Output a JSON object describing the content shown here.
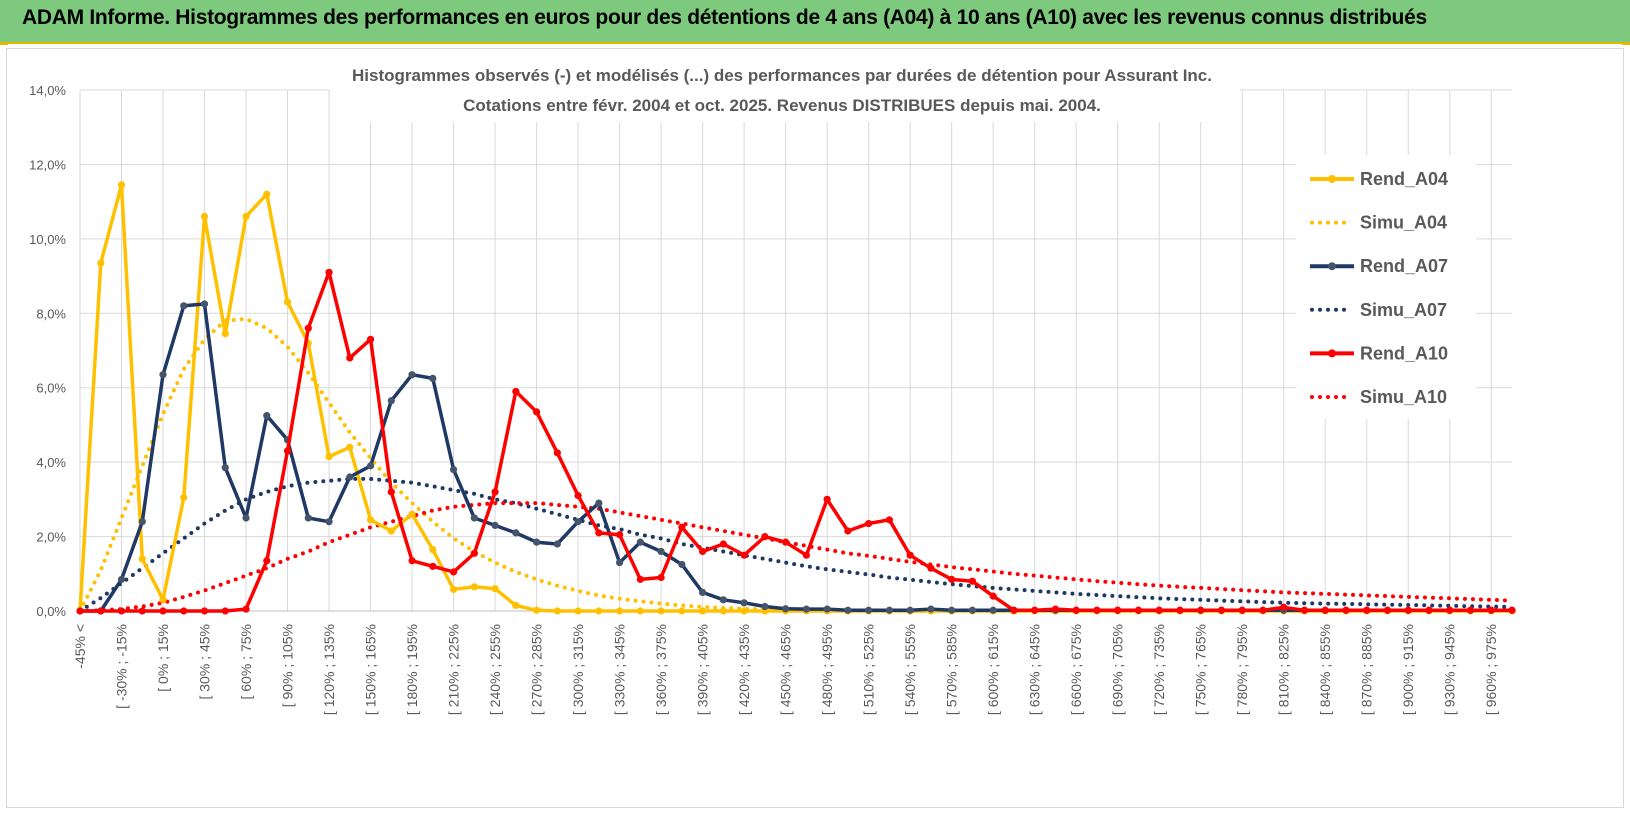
{
  "header": {
    "title": "ADAM Informe. Histogrammes des performances en euros pour des détentions de 4 ans (A04) à 10 ans (A10) avec les revenus connus distribués"
  },
  "colors": {
    "header_bg": "#7dc97d",
    "A04": "#ffc000",
    "A07": "#1f3864",
    "A10": "#ff0000",
    "grid": "#d9d9d9",
    "text": "#595959"
  },
  "chart_data": {
    "type": "line",
    "title": [
      "Histogrammes observés (-) et modélisés (...) des performances par durées de détention pour Assurant Inc.",
      "Cotations entre févr. 2004 et oct. 2025. Revenus DISTRIBUES depuis mai. 2004."
    ],
    "y_ticks": [
      "0,0%",
      "2,0%",
      "4,0%",
      "6,0%",
      "8,0%",
      "10,0%",
      "12,0%",
      "14,0%"
    ],
    "ylim": [
      0,
      14
    ],
    "x_ticks": [
      "-45% <",
      "[ -30% ; -15%",
      "[ 0% ; 15%",
      "[ 30% ; 45%",
      "[ 60% ; 75%",
      "[ 90% ; 105%",
      "[ 120% ; 135%",
      "[ 150% ; 165%",
      "[ 180% ; 195%",
      "[ 210% ; 225%",
      "[ 240% ; 255%",
      "[ 270% ; 285%",
      "[ 300% ; 315%",
      "[ 330% ; 345%",
      "[ 360% ; 375%",
      "[ 390% ; 405%",
      "[ 420% ; 435%",
      "[ 450% ; 465%",
      "[ 480% ; 495%",
      "[ 510% ; 525%",
      "[ 540% ; 555%",
      "[ 570% ; 585%",
      "[ 600% ; 615%",
      "[ 630% ; 645%",
      "[ 660% ; 675%",
      "[ 690% ; 705%",
      "[ 720% ; 735%",
      "[ 750% ; 765%",
      "[ 780% ; 795%",
      "[ 810% ; 825%",
      "[ 840% ; 855%",
      "[ 870% ; 885%",
      "[ 900% ; 915%",
      "[ 930% ; 945%",
      "[ 960% ; 975%"
    ],
    "legend_position": "right",
    "grid": true,
    "series": [
      {
        "name": "Rend_A04",
        "style": "solid",
        "color": "#ffc000",
        "values": [
          0,
          9.35,
          11.45,
          1.4,
          0.3,
          3.05,
          10.6,
          7.45,
          10.6,
          11.2,
          8.3,
          7.2,
          4.15,
          4.4,
          2.45,
          2.15,
          2.6,
          1.65,
          0.58,
          0.65,
          0.6,
          0.15,
          0.02,
          0,
          0,
          0,
          0,
          0,
          0,
          0,
          0,
          0,
          0,
          0,
          0,
          0,
          0,
          0,
          0,
          0,
          0,
          0,
          0,
          0,
          0,
          0,
          0,
          0,
          0,
          0,
          0,
          0,
          0,
          0,
          0,
          0,
          0,
          0,
          0,
          0,
          0,
          0,
          0,
          0,
          0,
          0,
          0,
          0,
          0,
          0
        ]
      },
      {
        "name": "Simu_A04",
        "style": "dotted",
        "color": "#ffc000",
        "values": [
          0,
          1.1,
          2.5,
          3.9,
          5.3,
          6.5,
          7.3,
          7.8,
          7.85,
          7.6,
          7.1,
          6.4,
          5.6,
          4.8,
          4.1,
          3.45,
          2.9,
          2.4,
          1.95,
          1.6,
          1.3,
          1.05,
          0.85,
          0.68,
          0.54,
          0.42,
          0.33,
          0.26,
          0.2,
          0.15,
          0.11,
          0.08,
          0.06,
          0.04,
          0.03,
          0.02,
          0.01,
          0,
          0,
          0,
          0,
          0,
          0,
          0,
          0,
          0,
          0,
          0,
          0,
          0,
          0,
          0,
          0,
          0,
          0,
          0,
          0,
          0,
          0,
          0,
          0,
          0,
          0,
          0,
          0,
          0,
          0,
          0,
          0,
          0
        ]
      },
      {
        "name": "Rend_A07",
        "style": "solid",
        "color": "#1f3864",
        "values": [
          0,
          0,
          0.85,
          2.4,
          6.35,
          8.2,
          8.25,
          3.85,
          2.5,
          5.25,
          4.6,
          2.5,
          2.4,
          3.6,
          3.9,
          5.65,
          6.35,
          6.25,
          3.8,
          2.5,
          2.3,
          2.1,
          1.85,
          1.8,
          2.4,
          2.9,
          1.3,
          1.85,
          1.6,
          1.25,
          0.5,
          0.3,
          0.22,
          0.12,
          0.06,
          0.05,
          0.05,
          0.02,
          0.02,
          0.02,
          0.02,
          0.05,
          0.02,
          0.02,
          0.02,
          0.02,
          0.02,
          0.02,
          0.02,
          0.02,
          0.02,
          0.02,
          0.02,
          0.02,
          0.02,
          0.02,
          0.02,
          0.02,
          0.02,
          0.02,
          0.02,
          0.02,
          0.02,
          0.02,
          0.02,
          0.02,
          0.02,
          0.02,
          0.02,
          0.02
        ]
      },
      {
        "name": "Simu_A07",
        "style": "dotted",
        "color": "#1f3864",
        "values": [
          0,
          0.35,
          0.75,
          1.15,
          1.55,
          1.95,
          2.35,
          2.7,
          3.0,
          3.2,
          3.35,
          3.45,
          3.5,
          3.55,
          3.55,
          3.5,
          3.45,
          3.35,
          3.25,
          3.15,
          3.0,
          2.9,
          2.75,
          2.6,
          2.45,
          2.3,
          2.2,
          2.05,
          1.95,
          1.8,
          1.7,
          1.6,
          1.5,
          1.4,
          1.3,
          1.2,
          1.12,
          1.05,
          0.98,
          0.9,
          0.84,
          0.78,
          0.72,
          0.67,
          0.62,
          0.58,
          0.54,
          0.5,
          0.46,
          0.43,
          0.4,
          0.37,
          0.34,
          0.32,
          0.3,
          0.28,
          0.26,
          0.24,
          0.22,
          0.21,
          0.2,
          0.19,
          0.18,
          0.17,
          0.16,
          0.15,
          0.14,
          0.13,
          0.12,
          0.11
        ]
      },
      {
        "name": "Rend_A10",
        "style": "solid",
        "color": "#ff0000",
        "values": [
          0,
          0,
          0,
          0,
          0,
          0,
          0,
          0,
          0.05,
          1.35,
          4.3,
          7.6,
          9.1,
          6.8,
          7.3,
          3.2,
          1.35,
          1.2,
          1.05,
          1.55,
          3.2,
          5.9,
          5.35,
          4.25,
          3.1,
          2.1,
          2.05,
          0.85,
          0.9,
          2.25,
          1.6,
          1.8,
          1.5,
          2.0,
          1.85,
          1.5,
          3.0,
          2.15,
          2.35,
          2.45,
          1.5,
          1.15,
          0.85,
          0.8,
          0.4,
          0.02,
          0.02,
          0.05,
          0.02,
          0.02,
          0.02,
          0.02,
          0.02,
          0.02,
          0.02,
          0.02,
          0.02,
          0.02,
          0.1,
          0.02,
          0.02,
          0.02,
          0.02,
          0.02,
          0.02,
          0.02,
          0.02,
          0.02,
          0.02,
          0.02
        ]
      },
      {
        "name": "Simu_A10",
        "style": "dotted",
        "color": "#ff0000",
        "values": [
          0,
          0.02,
          0.05,
          0.12,
          0.22,
          0.38,
          0.55,
          0.75,
          0.95,
          1.15,
          1.4,
          1.6,
          1.85,
          2.05,
          2.25,
          2.4,
          2.55,
          2.7,
          2.8,
          2.85,
          2.9,
          2.9,
          2.9,
          2.85,
          2.8,
          2.75,
          2.65,
          2.55,
          2.45,
          2.35,
          2.25,
          2.15,
          2.05,
          1.95,
          1.85,
          1.75,
          1.65,
          1.55,
          1.48,
          1.4,
          1.32,
          1.25,
          1.18,
          1.12,
          1.06,
          1.0,
          0.95,
          0.9,
          0.85,
          0.8,
          0.76,
          0.72,
          0.68,
          0.65,
          0.62,
          0.59,
          0.56,
          0.53,
          0.5,
          0.48,
          0.46,
          0.44,
          0.42,
          0.4,
          0.38,
          0.36,
          0.34,
          0.32,
          0.3,
          0.28
        ]
      }
    ]
  }
}
